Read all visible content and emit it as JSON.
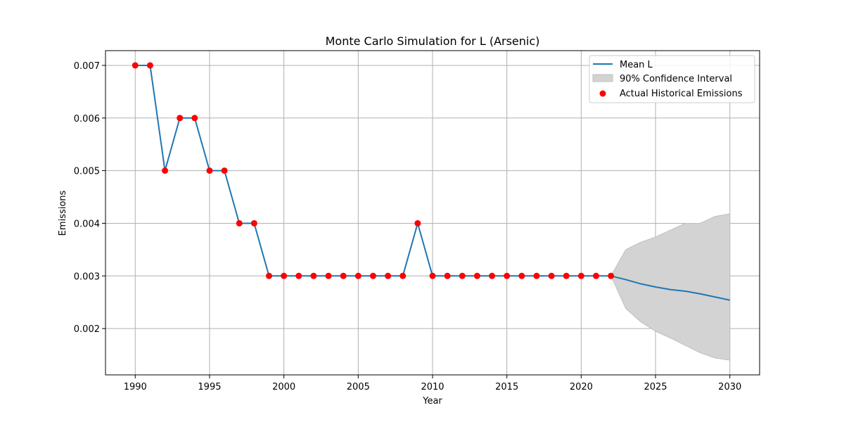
{
  "chart_data": {
    "type": "line",
    "title": "Monte Carlo Simulation for L (Arsenic)",
    "xlabel": "Year",
    "ylabel": "Emissions",
    "xlim": [
      1988,
      2032
    ],
    "ylim": [
      0.00112,
      0.00728
    ],
    "xticks": [
      1990,
      1995,
      2000,
      2005,
      2010,
      2015,
      2020,
      2025,
      2030
    ],
    "xtick_labels": [
      "1990",
      "1995",
      "2000",
      "2005",
      "2010",
      "2015",
      "2020",
      "2025",
      "2030"
    ],
    "yticks": [
      0.002,
      0.003,
      0.004,
      0.005,
      0.006,
      0.007
    ],
    "ytick_labels": [
      "0.002",
      "0.003",
      "0.004",
      "0.005",
      "0.006",
      "0.007"
    ],
    "grid": true,
    "legend_position": "top-right",
    "colors": {
      "mean_line": "#1f77b4",
      "ci_fill": "#d3d3d3",
      "ci_edge": "#bfbfbf",
      "historical_points": "#ff0000",
      "grid": "#b0b0b0"
    },
    "series": [
      {
        "name": "Mean L",
        "kind": "line",
        "x": [
          1990,
          1991,
          1992,
          1993,
          1994,
          1995,
          1996,
          1997,
          1998,
          1999,
          2000,
          2001,
          2002,
          2003,
          2004,
          2005,
          2006,
          2007,
          2008,
          2009,
          2010,
          2011,
          2012,
          2013,
          2014,
          2015,
          2016,
          2017,
          2018,
          2019,
          2020,
          2021,
          2022,
          2023,
          2024,
          2025,
          2026,
          2027,
          2028,
          2029,
          2030
        ],
        "y": [
          0.007,
          0.007,
          0.005,
          0.006,
          0.006,
          0.005,
          0.005,
          0.004,
          0.004,
          0.003,
          0.003,
          0.003,
          0.003,
          0.003,
          0.003,
          0.003,
          0.003,
          0.003,
          0.003,
          0.004,
          0.003,
          0.003,
          0.003,
          0.003,
          0.003,
          0.003,
          0.003,
          0.003,
          0.003,
          0.003,
          0.003,
          0.003,
          0.003,
          0.00293,
          0.00285,
          0.00279,
          0.00274,
          0.00271,
          0.00266,
          0.0026,
          0.00254
        ]
      },
      {
        "name": "90% Confidence Interval",
        "kind": "band",
        "x": [
          2022,
          2023,
          2024,
          2025,
          2026,
          2027,
          2028,
          2029,
          2030
        ],
        "lower": [
          0.003,
          0.00238,
          0.00213,
          0.00195,
          0.00182,
          0.00168,
          0.00154,
          0.00144,
          0.0014
        ],
        "upper": [
          0.003,
          0.0035,
          0.00364,
          0.00374,
          0.00387,
          0.004,
          0.004,
          0.00413,
          0.00418
        ]
      },
      {
        "name": "Actual Historical Emissions",
        "kind": "scatter",
        "x": [
          1990,
          1991,
          1992,
          1993,
          1994,
          1995,
          1996,
          1997,
          1998,
          1999,
          2000,
          2001,
          2002,
          2003,
          2004,
          2005,
          2006,
          2007,
          2008,
          2009,
          2010,
          2011,
          2012,
          2013,
          2014,
          2015,
          2016,
          2017,
          2018,
          2019,
          2020,
          2021,
          2022
        ],
        "y": [
          0.007,
          0.007,
          0.005,
          0.006,
          0.006,
          0.005,
          0.005,
          0.004,
          0.004,
          0.003,
          0.003,
          0.003,
          0.003,
          0.003,
          0.003,
          0.003,
          0.003,
          0.003,
          0.003,
          0.004,
          0.003,
          0.003,
          0.003,
          0.003,
          0.003,
          0.003,
          0.003,
          0.003,
          0.003,
          0.003,
          0.003,
          0.003,
          0.003
        ]
      }
    ]
  }
}
